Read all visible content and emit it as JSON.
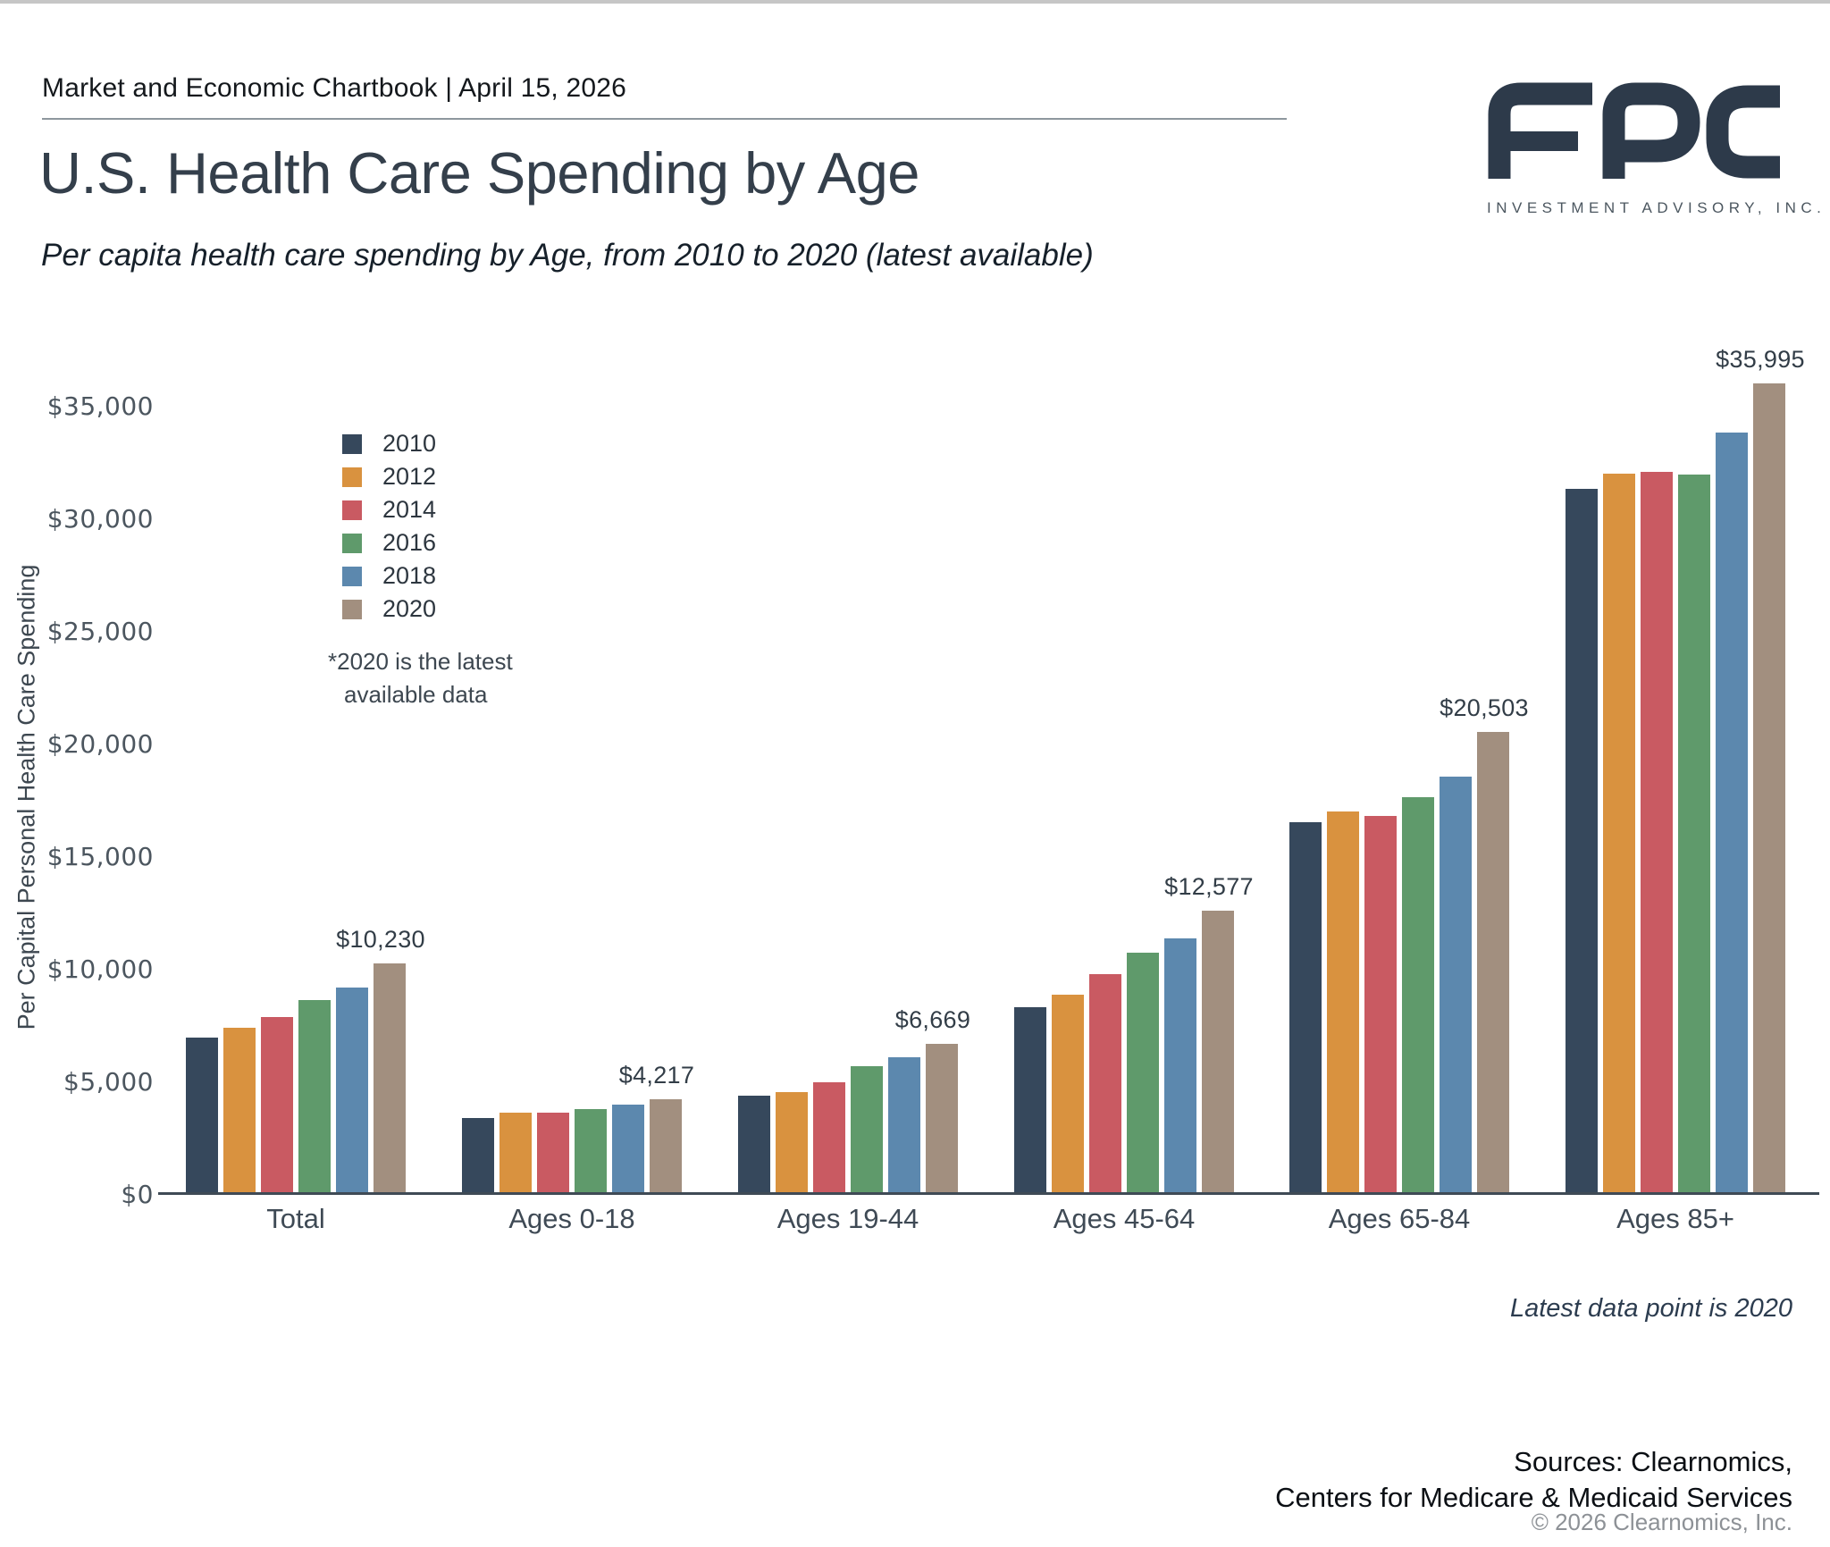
{
  "page": {
    "report_line": "Market and Economic Chartbook | April 15, 2026",
    "title": "U.S. Health Care Spending by Age",
    "subtitle": "Per capita health care spending by Age, from 2010 to 2020 (latest available)",
    "latest_note": "Latest data point is 2020",
    "sources_line1": "Sources: Clearnomics,",
    "sources_line2": "Centers for Medicare & Medicaid Services",
    "copyright": "© 2026 Clearnomics, Inc."
  },
  "logo": {
    "text": "FPC",
    "subtext": "INVESTMENT ADVISORY, INC.",
    "color": "#2d3a4a"
  },
  "chart_data": {
    "type": "bar",
    "title": "U.S. Health Care Spending by Age",
    "xlabel": "",
    "ylabel": "Per Capital Personal Health Care Spending",
    "ylim": [
      0,
      35000
    ],
    "grid": false,
    "legend_position": "upper-left-inside",
    "categories": [
      "Total",
      "Ages 0-18",
      "Ages 19-44",
      "Ages 45-64",
      "Ages 65-84",
      "Ages 85+"
    ],
    "series": [
      {
        "name": "2010",
        "color": "#36485C",
        "values": [
          6940,
          3360,
          4350,
          8310,
          16500,
          31300
        ]
      },
      {
        "name": "2012",
        "color": "#D9923F",
        "values": [
          7380,
          3600,
          4530,
          8830,
          17000,
          32000
        ]
      },
      {
        "name": "2014",
        "color": "#C95A62",
        "values": [
          7850,
          3630,
          4950,
          9780,
          16800,
          32050
        ]
      },
      {
        "name": "2016",
        "color": "#5F9A6B",
        "values": [
          8600,
          3750,
          5660,
          10730,
          17600,
          31950
        ]
      },
      {
        "name": "2018",
        "color": "#5C88AE",
        "values": [
          9180,
          3950,
          6080,
          11330,
          18550,
          33800
        ]
      },
      {
        "name": "2020",
        "color": "#A28F7F",
        "values": [
          10230,
          4217,
          6669,
          12577,
          20503,
          35995
        ]
      }
    ],
    "value_labels_series": "2020",
    "value_labels": [
      "$10,230",
      "$4,217",
      "$6,669",
      "$12,577",
      "$20,503",
      "$35,995"
    ],
    "ytick_values": [
      0,
      5000,
      10000,
      15000,
      20000,
      25000,
      30000,
      35000
    ],
    "ytick_labels": [
      "$0",
      "$5,000",
      "$10,000",
      "$15,000",
      "$20,000",
      "$25,000",
      "$30,000",
      "$35,000"
    ],
    "legend_note_line1": "*2020 is the latest",
    "legend_note_line2": "available data"
  }
}
